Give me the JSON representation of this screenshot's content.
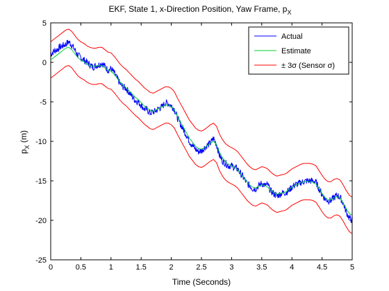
{
  "chart_data": {
    "type": "line",
    "title": "EKF, State 1, x-Direction Position, Yaw Frame, p",
    "title_subscript": "X",
    "xlabel": "Time (Seconds)",
    "ylabel": "p",
    "ylabel_subscript": "X",
    "ylabel_unit": " (m)",
    "xlim": [
      0,
      5
    ],
    "ylim": [
      -25,
      5
    ],
    "xticks": [
      "0",
      "0.5",
      "1",
      "1.5",
      "2",
      "2.5",
      "3",
      "3.5",
      "4",
      "4.5",
      "5"
    ],
    "yticks": [
      "5",
      "0",
      "-5",
      "-10",
      "-15",
      "-20",
      "-25"
    ],
    "grid": false,
    "legend_position": "top-right",
    "band_halfwidth": 2.3,
    "colors": {
      "actual": "#0000ff",
      "estimate": "#00cc33",
      "bounds": "#ff0000"
    },
    "series": [
      {
        "name": "Actual",
        "x": [
          0,
          0.05,
          0.1,
          0.15,
          0.2,
          0.25,
          0.3,
          0.35,
          0.4,
          0.45,
          0.5,
          0.55,
          0.6,
          0.65,
          0.7,
          0.75,
          0.8,
          0.85,
          0.9,
          0.95,
          1.0,
          1.05,
          1.1,
          1.15,
          1.2,
          1.25,
          1.3,
          1.35,
          1.4,
          1.45,
          1.5,
          1.55,
          1.6,
          1.65,
          1.7,
          1.75,
          1.8,
          1.85,
          1.9,
          1.95,
          2.0,
          2.05,
          2.1,
          2.15,
          2.2,
          2.25,
          2.3,
          2.35,
          2.4,
          2.45,
          2.5,
          2.55,
          2.6,
          2.65,
          2.7,
          2.75,
          2.8,
          2.85,
          2.9,
          2.95,
          3.0,
          3.05,
          3.1,
          3.15,
          3.2,
          3.25,
          3.3,
          3.35,
          3.4,
          3.45,
          3.5,
          3.55,
          3.6,
          3.65,
          3.7,
          3.75,
          3.8,
          3.85,
          3.9,
          3.95,
          4.0,
          4.05,
          4.1,
          4.15,
          4.2,
          4.25,
          4.3,
          4.35,
          4.4,
          4.45,
          4.5,
          4.55,
          4.6,
          4.65,
          4.7,
          4.75,
          4.8,
          4.85,
          4.9,
          4.95,
          5.0
        ],
        "values": [
          1.0,
          1.4,
          1.6,
          1.9,
          2.1,
          2.3,
          2.6,
          2.2,
          1.6,
          0.9,
          0.6,
          0.3,
          0.0,
          -0.3,
          -0.6,
          -0.4,
          -0.3,
          -0.1,
          -0.5,
          -1.0,
          -0.8,
          -1.3,
          -2.0,
          -2.7,
          -3.1,
          -3.3,
          -3.8,
          -4.3,
          -4.8,
          -5.0,
          -5.4,
          -5.9,
          -6.0,
          -6.4,
          -6.3,
          -6.1,
          -5.8,
          -5.6,
          -5.1,
          -5.2,
          -5.5,
          -5.9,
          -7.0,
          -7.8,
          -8.5,
          -9.2,
          -10.0,
          -10.5,
          -11.0,
          -11.3,
          -11.2,
          -10.8,
          -10.5,
          -10.2,
          -9.6,
          -10.4,
          -11.8,
          -12.5,
          -12.8,
          -13.1,
          -13.1,
          -13.3,
          -13.5,
          -14.1,
          -14.6,
          -15.3,
          -15.6,
          -16.0,
          -16.0,
          -15.6,
          -15.3,
          -15.6,
          -15.5,
          -16.3,
          -16.6,
          -16.9,
          -16.7,
          -16.5,
          -16.5,
          -16.2,
          -15.8,
          -15.5,
          -15.4,
          -15.2,
          -15.1,
          -15.0,
          -15.0,
          -15.0,
          -15.2,
          -16.0,
          -16.7,
          -17.3,
          -17.5,
          -17.5,
          -17.1,
          -16.8,
          -17.1,
          -17.8,
          -18.9,
          -19.7,
          -20.0
        ]
      },
      {
        "name": "Estimate",
        "x": [
          0,
          0.05,
          0.1,
          0.15,
          0.2,
          0.25,
          0.3,
          0.35,
          0.4,
          0.45,
          0.5,
          0.55,
          0.6,
          0.65,
          0.7,
          0.75,
          0.8,
          0.85,
          0.9,
          0.95,
          1.0,
          1.05,
          1.1,
          1.15,
          1.2,
          1.25,
          1.3,
          1.35,
          1.4,
          1.45,
          1.5,
          1.55,
          1.6,
          1.65,
          1.7,
          1.75,
          1.8,
          1.85,
          1.9,
          1.95,
          2.0,
          2.05,
          2.1,
          2.15,
          2.2,
          2.25,
          2.3,
          2.35,
          2.4,
          2.45,
          2.5,
          2.55,
          2.6,
          2.65,
          2.7,
          2.75,
          2.8,
          2.85,
          2.9,
          2.95,
          3.0,
          3.05,
          3.1,
          3.15,
          3.2,
          3.25,
          3.3,
          3.35,
          3.4,
          3.45,
          3.5,
          3.55,
          3.6,
          3.65,
          3.7,
          3.75,
          3.8,
          3.85,
          3.9,
          3.95,
          4.0,
          4.05,
          4.1,
          4.15,
          4.2,
          4.25,
          4.3,
          4.35,
          4.4,
          4.45,
          4.5,
          4.55,
          4.6,
          4.65,
          4.7,
          4.75,
          4.8,
          4.85,
          4.9,
          4.95,
          5.0
        ],
        "values": [
          0.3,
          0.6,
          0.9,
          1.2,
          1.5,
          1.8,
          1.9,
          1.6,
          1.1,
          0.6,
          0.3,
          0.1,
          -0.2,
          -0.4,
          -0.5,
          -0.5,
          -0.4,
          -0.4,
          -0.7,
          -1.0,
          -1.1,
          -1.5,
          -2.0,
          -2.5,
          -2.9,
          -3.2,
          -3.6,
          -4.0,
          -4.4,
          -4.7,
          -5.1,
          -5.5,
          -5.8,
          -6.1,
          -6.2,
          -6.0,
          -5.8,
          -5.6,
          -5.4,
          -5.4,
          -5.6,
          -6.0,
          -6.8,
          -7.5,
          -8.2,
          -8.9,
          -9.6,
          -10.1,
          -10.6,
          -10.9,
          -11.0,
          -10.8,
          -10.5,
          -10.2,
          -10.0,
          -10.4,
          -11.4,
          -12.1,
          -12.6,
          -12.9,
          -13.1,
          -13.3,
          -13.6,
          -14.1,
          -14.6,
          -15.1,
          -15.5,
          -15.8,
          -15.9,
          -15.7,
          -15.5,
          -15.6,
          -15.8,
          -16.2,
          -16.5,
          -16.7,
          -16.6,
          -16.5,
          -16.4,
          -16.1,
          -15.8,
          -15.6,
          -15.4,
          -15.2,
          -15.1,
          -15.1,
          -15.1,
          -15.2,
          -15.4,
          -16.0,
          -16.6,
          -17.1,
          -17.4,
          -17.4,
          -17.1,
          -17.0,
          -17.2,
          -17.8,
          -18.5,
          -19.1,
          -19.4
        ]
      }
    ],
    "legend": [
      {
        "label": "Actual",
        "color_key": "actual"
      },
      {
        "label": "Estimate",
        "color_key": "estimate"
      },
      {
        "label": "± 3σ (Sensor σ)",
        "color_key": "bounds"
      }
    ]
  }
}
